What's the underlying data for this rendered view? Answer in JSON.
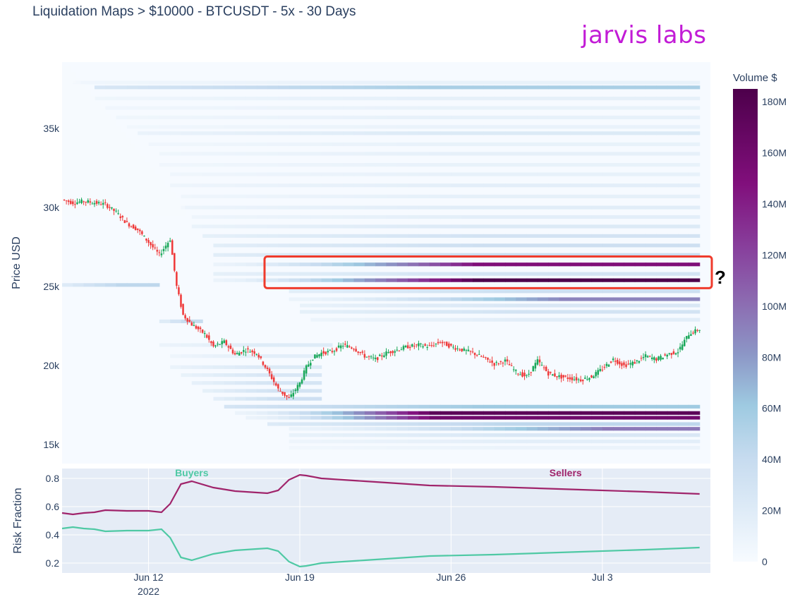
{
  "title": "Liquidation Maps > $10000 - BTCUSDT - 5x - 30 Days",
  "brand": "jarvis labs",
  "colors": {
    "brand": "#c21bd6",
    "up_candle": "#1aa85a",
    "down_candle": "#ef3b3b",
    "buyers_line": "#4fc9a4",
    "sellers_line": "#a0246b",
    "highlight_box": "#ef3b2c"
  },
  "annotation": {
    "question_mark": "?"
  },
  "chart_data": [
    {
      "type": "heatmap",
      "title": "",
      "ylabel": "Price USD",
      "ylim": [
        13800,
        39200
      ],
      "y_ticks": [
        {
          "value": 15000,
          "label": "15k"
        },
        {
          "value": 20000,
          "label": "20k"
        },
        {
          "value": 25000,
          "label": "25k"
        },
        {
          "value": 30000,
          "label": "30k"
        },
        {
          "value": 35000,
          "label": "35k"
        }
      ],
      "colorbar": {
        "title": "Volume $",
        "range": [
          0,
          185
        ],
        "ticks": [
          {
            "value": 0,
            "label": "0"
          },
          {
            "value": 20,
            "label": "20M"
          },
          {
            "value": 40,
            "label": "40M"
          },
          {
            "value": 60,
            "label": "60M"
          },
          {
            "value": 80,
            "label": "80M"
          },
          {
            "value": 100,
            "label": "100M"
          },
          {
            "value": 120,
            "label": "120M"
          },
          {
            "value": 140,
            "label": "140M"
          },
          {
            "value": 160,
            "label": "160M"
          },
          {
            "value": 180,
            "label": "180M"
          }
        ]
      },
      "liquidation_levels": [
        {
          "price": 37900,
          "start_day": 0.5,
          "end_day": 29.5,
          "volume": 12
        },
        {
          "price": 37600,
          "start_day": 1.5,
          "end_day": 29.5,
          "volume": 55
        },
        {
          "price": 36900,
          "start_day": 1.5,
          "end_day": 29.5,
          "volume": 14
        },
        {
          "price": 36300,
          "start_day": 2.0,
          "end_day": 29.5,
          "volume": 12
        },
        {
          "price": 35700,
          "start_day": 2.5,
          "end_day": 29.5,
          "volume": 13
        },
        {
          "price": 35100,
          "start_day": 3.0,
          "end_day": 29.5,
          "volume": 11
        },
        {
          "price": 34700,
          "start_day": 3.5,
          "end_day": 29.5,
          "volume": 22
        },
        {
          "price": 34000,
          "start_day": 4.0,
          "end_day": 29.5,
          "volume": 12
        },
        {
          "price": 33400,
          "start_day": 4.5,
          "end_day": 29.5,
          "volume": 14
        },
        {
          "price": 32700,
          "start_day": 4.5,
          "end_day": 29.5,
          "volume": 12
        },
        {
          "price": 32100,
          "start_day": 5.0,
          "end_day": 29.5,
          "volume": 13
        },
        {
          "price": 31400,
          "start_day": 5.0,
          "end_day": 29.5,
          "volume": 16
        },
        {
          "price": 30700,
          "start_day": 5.5,
          "end_day": 29.5,
          "volume": 14
        },
        {
          "price": 30000,
          "start_day": 5.5,
          "end_day": 29.5,
          "volume": 18
        },
        {
          "price": 29400,
          "start_day": 6.0,
          "end_day": 29.5,
          "volume": 16
        },
        {
          "price": 28800,
          "start_day": 6.0,
          "end_day": 29.5,
          "volume": 22
        },
        {
          "price": 28200,
          "start_day": 6.5,
          "end_day": 29.5,
          "volume": 30
        },
        {
          "price": 27600,
          "start_day": 7.0,
          "end_day": 29.5,
          "volume": 35
        },
        {
          "price": 27000,
          "start_day": 7.0,
          "end_day": 29.5,
          "volume": 38
        },
        {
          "price": 26400,
          "start_day": 7.0,
          "end_day": 29.5,
          "volume": 150,
          "peak_day": 19
        },
        {
          "price": 25800,
          "start_day": 7.0,
          "end_day": 29.5,
          "volume": 30
        },
        {
          "price": 25400,
          "start_day": 7.0,
          "end_day": 29.5,
          "volume": 185,
          "peak_day": 19
        },
        {
          "price": 25100,
          "start_day": 0.0,
          "end_day": 4.5,
          "volume": 45
        },
        {
          "price": 24700,
          "start_day": 10.5,
          "end_day": 29.5,
          "volume": 35
        },
        {
          "price": 24200,
          "start_day": 10.5,
          "end_day": 29.5,
          "volume": 90,
          "peak_day": 23
        },
        {
          "price": 23800,
          "start_day": 11.0,
          "end_day": 29.5,
          "volume": 25
        },
        {
          "price": 23400,
          "start_day": 11.0,
          "end_day": 29.5,
          "volume": 30
        },
        {
          "price": 22800,
          "start_day": 4.5,
          "end_day": 6.5,
          "volume": 40
        },
        {
          "price": 22900,
          "start_day": 11.5,
          "end_day": 29.5,
          "volume": 18
        },
        {
          "price": 21300,
          "start_day": 4.5,
          "end_day": 12.5,
          "volume": 20
        },
        {
          "price": 20600,
          "start_day": 5.0,
          "end_day": 12.0,
          "volume": 16
        },
        {
          "price": 19900,
          "start_day": 5.0,
          "end_day": 12.0,
          "volume": 22
        },
        {
          "price": 19400,
          "start_day": 5.5,
          "end_day": 12.0,
          "volume": 25
        },
        {
          "price": 18900,
          "start_day": 6.0,
          "end_day": 12.0,
          "volume": 28
        },
        {
          "price": 18400,
          "start_day": 6.5,
          "end_day": 12.0,
          "volume": 30
        },
        {
          "price": 17900,
          "start_day": 7.0,
          "end_day": 12.0,
          "volume": 34
        },
        {
          "price": 17400,
          "start_day": 7.5,
          "end_day": 29.5,
          "volume": 60
        },
        {
          "price": 17000,
          "start_day": 8.0,
          "end_day": 29.5,
          "volume": 175,
          "peak_day": 17
        },
        {
          "price": 16700,
          "start_day": 8.5,
          "end_day": 29.5,
          "volume": 160,
          "peak_day": 17
        },
        {
          "price": 16300,
          "start_day": 9.5,
          "end_day": 29.5,
          "volume": 45
        },
        {
          "price": 16000,
          "start_day": 10.5,
          "end_day": 29.5,
          "volume": 95,
          "peak_day": 25
        },
        {
          "price": 15600,
          "start_day": 10.5,
          "end_day": 29.5,
          "volume": 25
        },
        {
          "price": 15200,
          "start_day": 10.5,
          "end_day": 29.5,
          "volume": 16
        },
        {
          "price": 14800,
          "start_day": 10.5,
          "end_day": 29.5,
          "volume": 10
        }
      ],
      "price_series": {
        "name": "BTCUSDT",
        "day": [
          0,
          0.5,
          1,
          1.5,
          2,
          2.5,
          3,
          3.5,
          4,
          4.5,
          5,
          5.3,
          5.6,
          6,
          6.3,
          6.6,
          7,
          7.5,
          8,
          8.5,
          9,
          9.5,
          10,
          10.5,
          11,
          11.3,
          11.6,
          12,
          12.5,
          13,
          13.5,
          14,
          14.5,
          15,
          15.5,
          16,
          16.5,
          17,
          17.5,
          18,
          18.5,
          19,
          19.5,
          20,
          20.5,
          21,
          21.5,
          22,
          22.5,
          23,
          23.5,
          24,
          24.5,
          25,
          25.5,
          26,
          26.5,
          27,
          27.5,
          28,
          28.5,
          29,
          29.5
        ],
        "price": [
          30500,
          30300,
          30400,
          30300,
          30200,
          29700,
          29000,
          28600,
          27800,
          27000,
          28000,
          25000,
          23200,
          22600,
          22300,
          22000,
          21200,
          21500,
          20700,
          21000,
          20800,
          19700,
          18500,
          17900,
          18900,
          19900,
          20500,
          20800,
          20900,
          21300,
          21100,
          20600,
          20400,
          20800,
          21000,
          21200,
          21300,
          21200,
          21500,
          21200,
          21000,
          20800,
          20500,
          20100,
          20300,
          19600,
          19300,
          20300,
          19500,
          19300,
          19200,
          19100,
          19300,
          19800,
          20400,
          20000,
          20200,
          20600,
          20400,
          20700,
          20900,
          22000,
          22300
        ]
      }
    },
    {
      "type": "line",
      "title": "",
      "ylabel": "Risk Fraction",
      "ylim": [
        0.13,
        0.87
      ],
      "y_ticks": [
        {
          "value": 0.2,
          "label": "0.2"
        },
        {
          "value": 0.4,
          "label": "0.4"
        },
        {
          "value": 0.6,
          "label": "0.6"
        },
        {
          "value": 0.8,
          "label": "0.8"
        }
      ],
      "x_ticks": [
        {
          "day": 4,
          "label": "Jun 12"
        },
        {
          "day": 11,
          "label": "Jun 19"
        },
        {
          "day": 18,
          "label": "Jun 26"
        },
        {
          "day": 25,
          "label": "Jul 3"
        }
      ],
      "x_year_label": "2022",
      "annotations": [
        {
          "text": "Buyers",
          "day": 6.0,
          "y": 0.835
        },
        {
          "text": "Sellers",
          "day": 23.3,
          "y": 0.835
        }
      ],
      "series": [
        {
          "name": "",
          "role": "sellers",
          "day": [
            0,
            0.5,
            1,
            1.5,
            2,
            3,
            4,
            4.6,
            5,
            5.5,
            6,
            7,
            8,
            9,
            9.5,
            10,
            10.5,
            11,
            11.3,
            12,
            14,
            17,
            20,
            24,
            27,
            29.5
          ],
          "values": [
            0.555,
            0.545,
            0.555,
            0.56,
            0.575,
            0.57,
            0.57,
            0.56,
            0.62,
            0.76,
            0.78,
            0.735,
            0.71,
            0.7,
            0.695,
            0.715,
            0.79,
            0.825,
            0.82,
            0.8,
            0.78,
            0.75,
            0.74,
            0.72,
            0.705,
            0.69
          ]
        },
        {
          "name": "",
          "role": "buyers",
          "day": [
            0,
            0.5,
            1,
            1.5,
            2,
            3,
            4,
            4.6,
            5,
            5.5,
            6,
            7,
            8,
            9,
            9.5,
            10,
            10.5,
            11,
            11.3,
            12,
            14,
            17,
            20,
            24,
            27,
            29.5
          ],
          "values": [
            0.445,
            0.455,
            0.445,
            0.44,
            0.425,
            0.43,
            0.43,
            0.44,
            0.38,
            0.24,
            0.22,
            0.265,
            0.29,
            0.3,
            0.305,
            0.285,
            0.21,
            0.175,
            0.18,
            0.2,
            0.22,
            0.25,
            0.26,
            0.28,
            0.295,
            0.31
          ]
        }
      ]
    }
  ]
}
